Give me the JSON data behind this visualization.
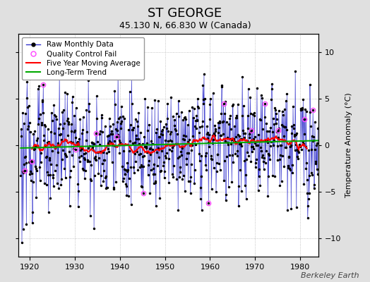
{
  "title": "ST GEORGE",
  "subtitle": "45.130 N, 66.830 W (Canada)",
  "ylabel": "Temperature Anomaly (°C)",
  "watermark": "Berkeley Earth",
  "xlim": [
    1917.5,
    1984
  ],
  "ylim": [
    -12,
    12
  ],
  "yticks": [
    -10,
    -5,
    0,
    5,
    10
  ],
  "xticks": [
    1920,
    1930,
    1940,
    1950,
    1960,
    1970,
    1980
  ],
  "bg_color": "#e0e0e0",
  "plot_bg_color": "#ffffff",
  "line_color_raw": "#3333cc",
  "dot_color_raw": "#000000",
  "ma_color": "#ff0000",
  "trend_color": "#00aa00",
  "qc_color": "#ff44ff",
  "legend_items": [
    "Raw Monthly Data",
    "Quality Control Fail",
    "Five Year Moving Average",
    "Long-Term Trend"
  ],
  "title_fontsize": 13,
  "subtitle_fontsize": 9,
  "ylabel_fontsize": 8,
  "tick_fontsize": 8,
  "watermark_fontsize": 8,
  "legend_fontsize": 7.5
}
